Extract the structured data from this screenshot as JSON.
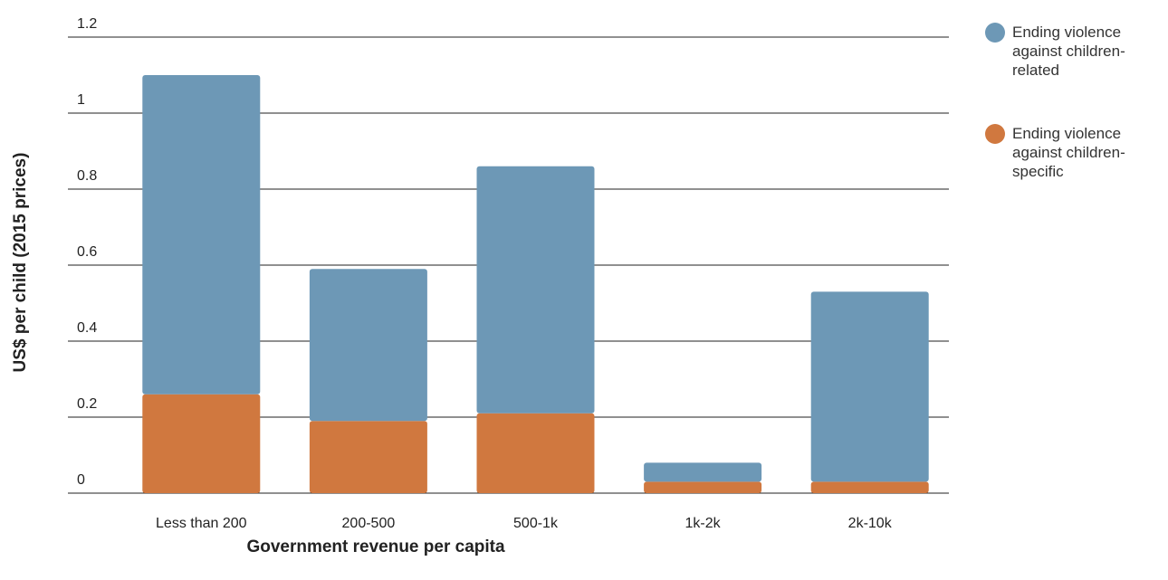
{
  "chart_data": {
    "type": "stacked_bar",
    "xlabel": "Government revenue per capita",
    "ylabel": "US$ per child (2015 prices)",
    "categories": [
      "Less than 200",
      "200-500",
      "500-1k",
      "1k-2k",
      "2k-10k"
    ],
    "series": [
      {
        "name": "Ending violence against children-specific",
        "color": "#d0783f",
        "values": [
          0.26,
          0.19,
          0.21,
          0.03,
          0.03
        ]
      },
      {
        "name": "Ending violence against children-related",
        "color": "#6d98b6",
        "values": [
          0.84,
          0.4,
          0.65,
          0.05,
          0.5
        ]
      }
    ],
    "ylim": [
      0,
      1.2
    ],
    "yticks": [
      0,
      0.2,
      0.4,
      0.6,
      0.8,
      1,
      1.2
    ],
    "grid": true
  }
}
